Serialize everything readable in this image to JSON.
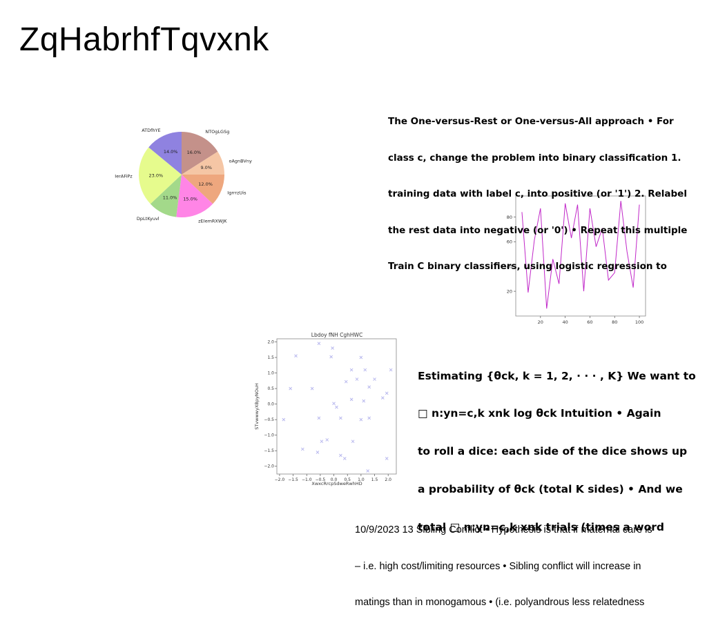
{
  "slide": {
    "title": "ZqHabrhfTqvxnk",
    "text_blocks": [
      {
        "lines": [
          "The One-versus-Rest or One-versus-All approach • For",
          "class c, change the problem into binary classification 1.",
          "training data with label c, into positive (or '1') 2. Relabel",
          "the rest data into negative (or '0') • Repeat this multiple",
          "Train C binary classifiers, using logistic regression to"
        ]
      },
      {
        "lines": [
          "Estimating {θck, k = 1, 2, · · · , K} We want to",
          "□ n:yn=c,k xnk log θck Intuition • Again",
          "to roll a dice: each side of the dice shows up",
          "a probability of θck (total K sides) • And we",
          "total □ n:yn=c,k xnk trials (times a word"
        ]
      },
      {
        "lines": [
          "10/9/2023 13 Sibling Conflict • Hypothesis is that if maternal care is",
          "– i.e. high cost/limiting resources • Sibling conflict will increase in",
          "matings than in monogamous • (i.e. polyandrous less relatedness"
        ]
      }
    ]
  },
  "chart_data": [
    {
      "type": "pie",
      "labels": [
        "NTOgLGSg",
        "oAgnBVny",
        "IgrrrzUis",
        "zEIemRXWJK",
        "DpLtKyuvl",
        "IerAFiPz",
        "ATDfhYE"
      ],
      "values": [
        16.0,
        9.0,
        12.0,
        15.0,
        11.0,
        23.0,
        14.0
      ],
      "value_labels": [
        "16.0%",
        "9.0%",
        "12.0%",
        "15.0%",
        "11.0%",
        "23.0%",
        "14.0%"
      ],
      "colors": [
        "#c4918a",
        "#f5c6a5",
        "#eea77e",
        "#ff85e6",
        "#a3d98a",
        "#e6fb8d",
        "#8f82e0"
      ],
      "start_angle_deg": 90,
      "direction": "clockwise"
    },
    {
      "type": "line",
      "x": [
        5,
        10,
        15,
        20,
        25,
        30,
        35,
        40,
        45,
        50,
        55,
        60,
        65,
        70,
        75,
        80,
        85,
        90,
        95,
        100
      ],
      "y": [
        84,
        19,
        61,
        87,
        6,
        46,
        26,
        91,
        63,
        90,
        20,
        87,
        56,
        71,
        29,
        35,
        93,
        52,
        23,
        90
      ],
      "xticks": [
        20,
        40,
        60,
        80,
        100
      ],
      "yticks": [
        20,
        40,
        60,
        80
      ],
      "xlim": [
        0,
        105
      ],
      "ylim": [
        0,
        97
      ],
      "color": "#c026c8"
    },
    {
      "type": "scatter",
      "title": "Lbdoy fNH CghHWC",
      "xlabel": "XwxcRrcpSdweRwhHD",
      "ylabel": "STvwwwyXBpyNOuH",
      "marker": "x",
      "color": "#b8b8ee",
      "xlim": [
        -2.1,
        2.3
      ],
      "ylim": [
        -2.25,
        2.1
      ],
      "xticks": [
        -2.0,
        -1.5,
        -1.0,
        -0.5,
        0.0,
        0.5,
        1.0,
        1.5,
        2.0
      ],
      "yticks": [
        -2.0,
        -1.5,
        -1.0,
        -0.5,
        0.0,
        0.5,
        1.0,
        1.5,
        2.0
      ],
      "xtick_labels": [
        "−2.0",
        "−1.5",
        "−1.0",
        "−0.5",
        "0.0",
        "0.5",
        "1.0",
        "1.5",
        "2.0"
      ],
      "ytick_labels": [
        "−2.0",
        "−1.5",
        "−1.0",
        "−0.5",
        "0.0",
        "0.5",
        "1.0",
        "1.5",
        "2.0"
      ],
      "points": [
        [
          -0.55,
          1.95
        ],
        [
          -1.4,
          1.55
        ],
        [
          -0.05,
          1.8
        ],
        [
          -0.1,
          1.52
        ],
        [
          1.0,
          1.5
        ],
        [
          1.15,
          1.1
        ],
        [
          0.65,
          1.1
        ],
        [
          2.1,
          1.1
        ],
        [
          1.5,
          0.8
        ],
        [
          0.85,
          0.8
        ],
        [
          0.45,
          0.72
        ],
        [
          1.3,
          0.55
        ],
        [
          -1.6,
          0.5
        ],
        [
          -0.8,
          0.5
        ],
        [
          1.95,
          0.35
        ],
        [
          1.8,
          0.2
        ],
        [
          0.65,
          0.15
        ],
        [
          1.1,
          0.1
        ],
        [
          0.0,
          0.02
        ],
        [
          0.1,
          -0.1
        ],
        [
          -1.85,
          -0.5
        ],
        [
          -0.55,
          -0.45
        ],
        [
          0.25,
          -0.45
        ],
        [
          1.0,
          -0.5
        ],
        [
          1.3,
          -0.45
        ],
        [
          -0.45,
          -1.2
        ],
        [
          -0.25,
          -1.15
        ],
        [
          0.7,
          -1.2
        ],
        [
          -1.15,
          -1.45
        ],
        [
          -0.6,
          -1.55
        ],
        [
          0.25,
          -1.65
        ],
        [
          0.4,
          -1.75
        ],
        [
          1.95,
          -1.75
        ],
        [
          1.25,
          -2.15
        ]
      ]
    }
  ]
}
